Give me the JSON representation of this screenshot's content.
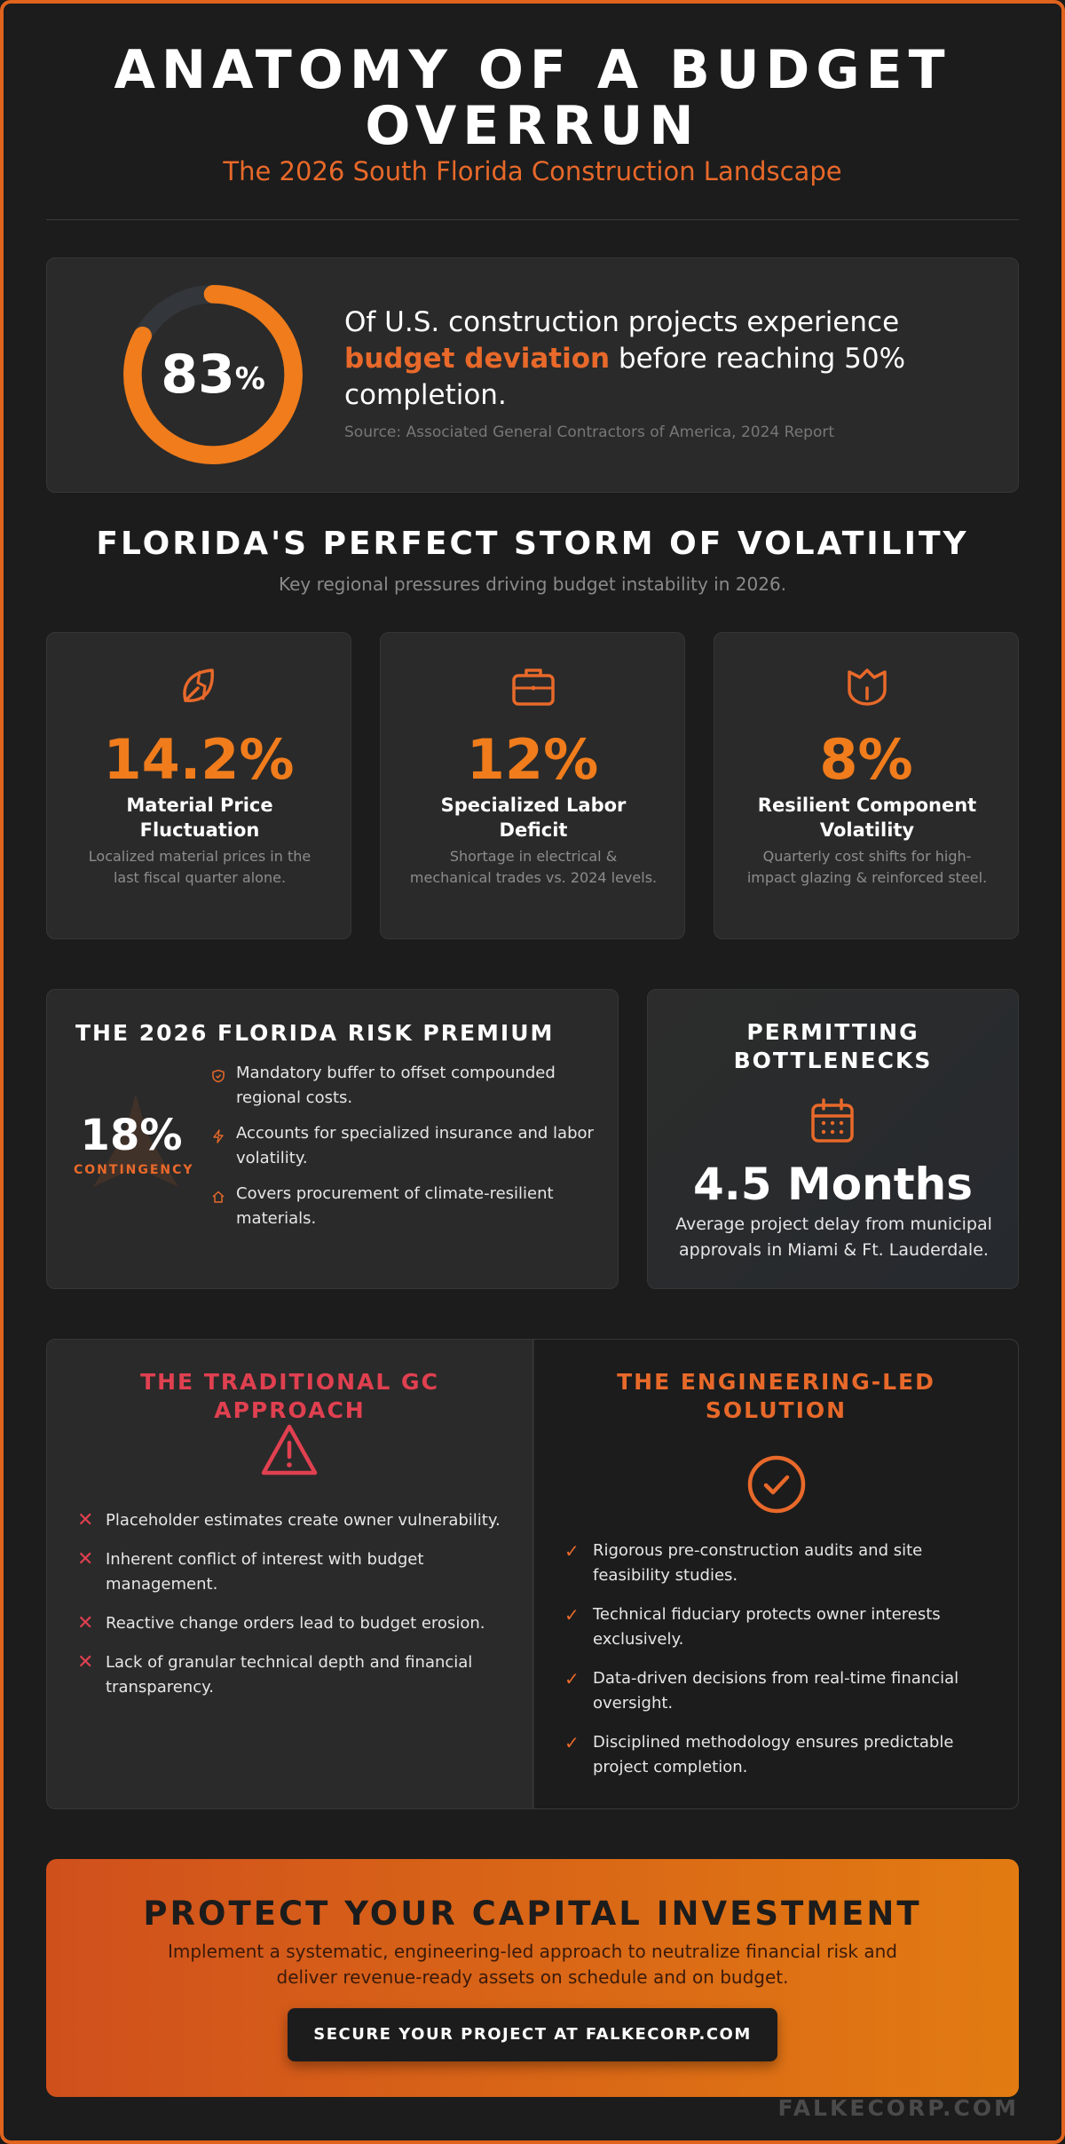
{
  "header": {
    "title": "ANATOMY OF A BUDGET OVERRUN",
    "subtitle": "The 2026 South Florida Construction Landscape"
  },
  "hero_stat": {
    "value": "83",
    "unit": "%",
    "percent": 83,
    "text_before": "Of U.S. construction projects experience ",
    "highlight": "budget deviation",
    "text_after": " before reaching 50% completion.",
    "source": "Source: Associated General Contractors of America, 2024 Report"
  },
  "volatility": {
    "heading": "FLORIDA'S PERFECT STORM OF VOLATILITY",
    "subheading": "Key regional pressures driving budget instability in 2026.",
    "cards": [
      {
        "icon": "broken-leaf-icon",
        "value": "14.2%",
        "label": "Material Price Fluctuation",
        "desc": "Localized material prices in the last fiscal quarter alone."
      },
      {
        "icon": "briefcase-icon",
        "value": "12%",
        "label": "Specialized Labor Deficit",
        "desc": "Shortage in electrical & mechanical trades vs. 2024 levels."
      },
      {
        "icon": "shield-shape-icon",
        "value": "8%",
        "label": "Resilient Component Volatility",
        "desc": "Quarterly cost shifts for high-impact glazing & reinforced steel."
      }
    ]
  },
  "risk_premium": {
    "heading": "THE 2026 FLORIDA RISK PREMIUM",
    "value": "18%",
    "value_label": "CONTINGENCY",
    "items": [
      {
        "icon": "shield-icon",
        "text": "Mandatory buffer to offset compounded regional costs."
      },
      {
        "icon": "bolt-icon",
        "text": "Accounts for specialized insurance and labor volatility."
      },
      {
        "icon": "home-icon",
        "text": "Covers procurement of climate-resilient materials."
      }
    ]
  },
  "permitting": {
    "heading": "PERMITTING BOTTLENECKS",
    "value": "4.5 Months",
    "desc": "Average project delay from municipal approvals in Miami & Ft. Lauderdale."
  },
  "comparison": {
    "traditional": {
      "heading": "THE TRADITIONAL GC APPROACH",
      "items": [
        "Placeholder estimates create owner vulnerability.",
        "Inherent conflict of interest with budget management.",
        "Reactive change orders lead to budget erosion.",
        "Lack of granular technical depth and financial transparency."
      ]
    },
    "engineering": {
      "heading": "THE ENGINEERING-LED SOLUTION",
      "items": [
        "Rigorous pre-construction audits and site feasibility studies.",
        "Technical fiduciary protects owner interests exclusively.",
        "Data-driven decisions from real-time financial oversight.",
        "Disciplined methodology ensures predictable project completion."
      ]
    }
  },
  "cta": {
    "heading": "PROTECT YOUR CAPITAL INVESTMENT",
    "text": "Implement a systematic, engineering-led approach to neutralize financial risk and deliver revenue-ready assets on schedule and on budget.",
    "button": "SECURE YOUR PROJECT AT FALKECORP.COM"
  },
  "footer": {
    "brand": "FALKECORP.COM"
  },
  "colors": {
    "accent": "#e8692a",
    "accent_bright": "#f07c1c",
    "danger": "#e04050",
    "background": "#1c1c1c",
    "panel": "#2a2a2a"
  }
}
